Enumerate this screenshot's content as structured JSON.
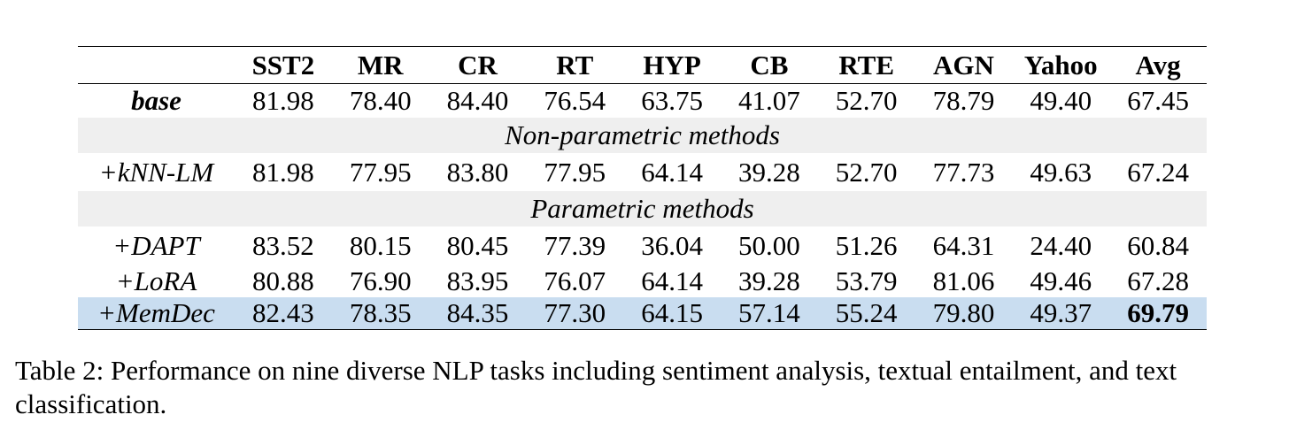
{
  "table": {
    "columns": [
      "",
      "SST2",
      "MR",
      "CR",
      "RT",
      "HYP",
      "CB",
      "RTE",
      "AGN",
      "Yahoo",
      "Avg"
    ],
    "base_row": {
      "method": "base",
      "values": [
        "81.98",
        "78.40",
        "84.40",
        "76.54",
        "63.75",
        "41.07",
        "52.70",
        "78.79",
        "49.40",
        "67.45"
      ]
    },
    "section_nonparametric": "Non-parametric methods",
    "knn_row": {
      "method": "+kNN-LM",
      "values": [
        "81.98",
        "77.95",
        "83.80",
        "77.95",
        "64.14",
        "39.28",
        "52.70",
        "77.73",
        "49.63",
        "67.24"
      ]
    },
    "section_parametric": "Parametric methods",
    "dapt_row": {
      "method": "+DAPT",
      "values": [
        "83.52",
        "80.15",
        "80.45",
        "77.39",
        "36.04",
        "50.00",
        "51.26",
        "64.31",
        "24.40",
        "60.84"
      ]
    },
    "lora_row": {
      "method": "+LoRA",
      "values": [
        "80.88",
        "76.90",
        "83.95",
        "76.07",
        "64.14",
        "39.28",
        "53.79",
        "81.06",
        "49.46",
        "67.28"
      ]
    },
    "memdec_row": {
      "method": "+MemDec",
      "values": [
        "82.43",
        "78.35",
        "84.35",
        "77.30",
        "64.15",
        "57.14",
        "55.24",
        "79.80",
        "49.37",
        "69.79"
      ]
    },
    "colors": {
      "section_bg": "#efefef",
      "highlight_bg": "#c9ddf0"
    }
  },
  "caption": "Table 2: Performance on nine diverse NLP tasks including sentiment analysis, textual entailment, and text classification."
}
